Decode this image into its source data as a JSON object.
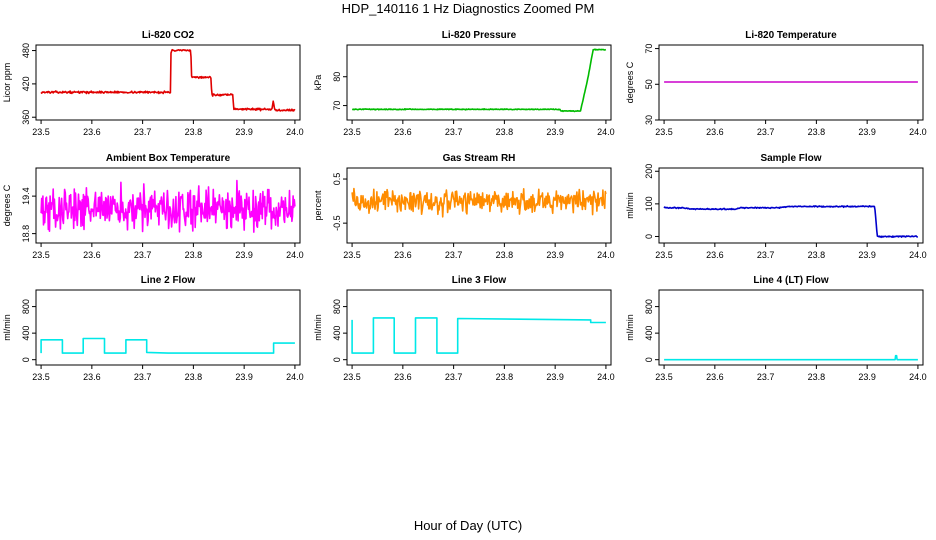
{
  "figure": {
    "title": "HDP_140116  1 Hz Diagnostics Zoomed PM",
    "xlabel": "Hour of Day (UTC)"
  },
  "chart_data": [
    {
      "type": "line",
      "title": "Li-820 CO2",
      "ylabel": "Licor ppm",
      "color": "#e00000",
      "xlim": [
        23.49,
        24.01
      ],
      "ylim": [
        355,
        490
      ],
      "xticks": [
        23.5,
        23.6,
        23.7,
        23.8,
        23.9,
        24.0
      ],
      "yticks": [
        360,
        420,
        480
      ],
      "x": [
        23.5,
        23.755,
        23.756,
        23.795,
        23.796,
        23.835,
        23.836,
        23.878,
        23.879,
        23.955,
        23.957,
        23.96,
        23.962,
        24.0
      ],
      "y": [
        405,
        405,
        480,
        480,
        432,
        432,
        400,
        400,
        375,
        374,
        388,
        376,
        373,
        373
      ],
      "noise": 1.5
    },
    {
      "type": "line",
      "title": "Li-820 Pressure",
      "ylabel": "kPa",
      "color": "#00bb00",
      "xlim": [
        23.49,
        24.01
      ],
      "ylim": [
        65,
        91
      ],
      "xticks": [
        23.5,
        23.6,
        23.7,
        23.8,
        23.9,
        24.0
      ],
      "yticks": [
        70,
        80
      ],
      "x": [
        23.5,
        23.91,
        23.911,
        23.95,
        23.965,
        23.975,
        24.0
      ],
      "y": [
        68.7,
        68.7,
        68.1,
        68.1,
        80,
        89.4,
        89.4
      ],
      "noise": 0.12
    },
    {
      "type": "line",
      "title": "Li-820 Temperature",
      "ylabel": "degrees C",
      "color": "#cc00cc",
      "xlim": [
        23.49,
        24.01
      ],
      "ylim": [
        30,
        72
      ],
      "xticks": [
        23.5,
        23.6,
        23.7,
        23.8,
        23.9,
        24.0
      ],
      "yticks": [
        30,
        50,
        70
      ],
      "x": [
        23.5,
        24.0
      ],
      "y": [
        51.3,
        51.3
      ],
      "noise": 0
    },
    {
      "type": "line",
      "title": "Ambient Box Temperature",
      "ylabel": "degrees C",
      "color": "#ff00ff",
      "xlim": [
        23.49,
        24.01
      ],
      "ylim": [
        18.65,
        19.85
      ],
      "xticks": [
        23.5,
        23.6,
        23.7,
        23.8,
        23.9,
        24.0
      ],
      "yticks": [
        18.8,
        19.4
      ],
      "x": [
        23.5,
        24.0
      ],
      "y": [
        19.2,
        19.2
      ],
      "noise": 0.28
    },
    {
      "type": "line",
      "title": "Gas Stream RH",
      "ylabel": "percent",
      "color": "#ff8c00",
      "xlim": [
        23.49,
        24.01
      ],
      "ylim": [
        -0.95,
        0.75
      ],
      "xticks": [
        23.5,
        23.6,
        23.7,
        23.8,
        23.9,
        24.0
      ],
      "yticks": [
        -0.5,
        0.5
      ],
      "x": [
        23.5,
        24.0
      ],
      "y": [
        0.0,
        0.0
      ],
      "noise": 0.22
    },
    {
      "type": "line",
      "title": "Sample Flow",
      "ylabel": "ml/min",
      "color": "#0000cc",
      "xlim": [
        23.49,
        24.01
      ],
      "ylim": [
        -20,
        210
      ],
      "xticks": [
        23.5,
        23.6,
        23.7,
        23.8,
        23.9,
        24.0
      ],
      "yticks": [
        0,
        100,
        200
      ],
      "x": [
        23.5,
        23.54,
        23.55,
        23.64,
        23.65,
        23.73,
        23.74,
        23.915,
        23.92,
        24.0
      ],
      "y": [
        88,
        88,
        84,
        84,
        88,
        88,
        92,
        92,
        0,
        0
      ],
      "noise": 1.5
    },
    {
      "type": "line",
      "title": "Line 2 Flow",
      "ylabel": "ml/min",
      "color": "#00e8e8",
      "xlim": [
        23.49,
        24.01
      ],
      "ylim": [
        -80,
        1050
      ],
      "xticks": [
        23.5,
        23.6,
        23.7,
        23.8,
        23.9,
        24.0
      ],
      "yticks": [
        0,
        400,
        800
      ],
      "x": [
        23.5,
        23.5,
        23.542,
        23.542,
        23.583,
        23.583,
        23.625,
        23.625,
        23.667,
        23.667,
        23.708,
        23.708,
        23.75,
        23.958,
        23.958,
        24.0
      ],
      "y": [
        100,
        300,
        300,
        100,
        100,
        320,
        320,
        100,
        100,
        300,
        300,
        110,
        100,
        100,
        250,
        250
      ],
      "noise": 0
    },
    {
      "type": "line",
      "title": "Line 3 Flow",
      "ylabel": "ml/min",
      "color": "#00e8e8",
      "xlim": [
        23.49,
        24.01
      ],
      "ylim": [
        -80,
        1050
      ],
      "xticks": [
        23.5,
        23.6,
        23.7,
        23.8,
        23.9,
        24.0
      ],
      "yticks": [
        0,
        400,
        800
      ],
      "x": [
        23.5,
        23.5,
        23.5,
        23.542,
        23.542,
        23.583,
        23.583,
        23.625,
        23.625,
        23.667,
        23.667,
        23.708,
        23.708,
        23.97,
        23.97,
        24.0
      ],
      "y": [
        600,
        100,
        100,
        100,
        630,
        630,
        100,
        100,
        630,
        630,
        100,
        100,
        620,
        600,
        560,
        560
      ],
      "noise": 0
    },
    {
      "type": "line",
      "title": "Line 4 (LT) Flow",
      "ylabel": "ml/min",
      "color": "#00e8e8",
      "xlim": [
        23.49,
        24.01
      ],
      "ylim": [
        -80,
        1050
      ],
      "xticks": [
        23.5,
        23.6,
        23.7,
        23.8,
        23.9,
        24.0
      ],
      "yticks": [
        0,
        400,
        800
      ],
      "x": [
        23.5,
        23.955,
        23.956,
        23.958,
        23.959,
        24.0
      ],
      "y": [
        0,
        0,
        60,
        60,
        0,
        0
      ],
      "noise": 0
    }
  ]
}
